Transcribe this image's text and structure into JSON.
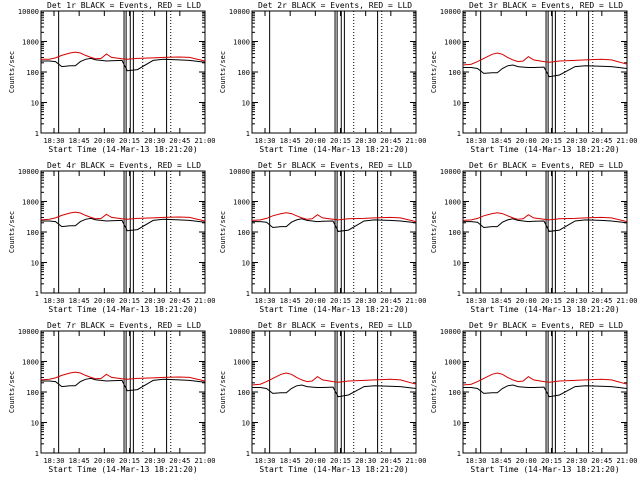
{
  "chart_data": [
    {
      "type": "line",
      "title": "Det 1r BLACK = Events, RED = LLD",
      "xlabel": "Start Time (14-Mar-13 18:21:20)",
      "ylabel": "Counts/sec",
      "yscale": "log",
      "ylim": [
        1,
        10000
      ],
      "xlim": [
        "18:22",
        "21:00"
      ],
      "x_ticks": [
        "18:30",
        "18:45",
        "20:00",
        "20:15",
        "20:30",
        "20:45",
        "21:00"
      ],
      "y_ticks": [
        "1",
        "10",
        "100",
        "1000",
        "10000"
      ],
      "legend": "none",
      "grid": false,
      "x": [
        "18:22",
        "18:30",
        "18:36",
        "18:42",
        "18:50",
        "18:55",
        "19:00",
        "19:05",
        "19:10",
        "19:15",
        "19:20",
        "19:25",
        "19:30",
        "19:40",
        "19:45",
        "19:55",
        "20:10",
        "20:20",
        "20:35",
        "20:45",
        "21:00"
      ],
      "series": [
        {
          "color": "#000000",
          "values": [
            230,
            230,
            220,
            150,
            160,
            160,
            220,
            260,
            280,
            250,
            240,
            230,
            235,
            240,
            110,
            120,
            240,
            260,
            250,
            240,
            210
          ]
        },
        {
          "color": "#d40000",
          "values": [
            260,
            260,
            290,
            350,
            420,
            450,
            420,
            350,
            300,
            270,
            280,
            390,
            300,
            270,
            260,
            280,
            290,
            300,
            310,
            300,
            230
          ]
        }
      ],
      "vertical_lines": {
        "solid": [
          "18:22",
          "18:39",
          "19:42",
          "19:44",
          "19:48",
          "19:51",
          "20:23"
        ],
        "dotted": [
          "20:00",
          "20:27"
        ]
      }
    },
    {
      "type": "line",
      "title": "Det 2r BLACK = Events, RED = LLD",
      "xlabel": "Start Time (14-Mar-13 18:21:20)",
      "ylabel": "Counts/sec",
      "yscale": "log",
      "ylim": [
        1,
        10000
      ],
      "xlim": [
        "18:22",
        "21:00"
      ],
      "x_ticks": [
        "18:30",
        "18:45",
        "20:00",
        "20:15",
        "20:30",
        "20:45",
        "21:00"
      ],
      "y_ticks": [
        "1",
        "10",
        "100",
        "1000",
        "10000"
      ],
      "legend": "none",
      "grid": false,
      "x": [],
      "series": [],
      "vertical_lines": {
        "solid": [
          "18:22",
          "18:39",
          "19:42",
          "19:44",
          "19:48",
          "19:51",
          "20:23"
        ],
        "dotted": [
          "20:00",
          "20:27"
        ]
      }
    },
    {
      "type": "line",
      "title": "Det 3r BLACK = Events, RED = LLD",
      "xlabel": "Start Time (14-Mar-13 18:21:20)",
      "ylabel": "Counts/sec",
      "yscale": "log",
      "ylim": [
        1,
        10000
      ],
      "xlim": [
        "18:22",
        "21:00"
      ],
      "x_ticks": [
        "18:30",
        "18:45",
        "20:00",
        "20:15",
        "20:30",
        "20:45",
        "21:00"
      ],
      "y_ticks": [
        "1",
        "10",
        "100",
        "1000",
        "10000"
      ],
      "legend": "none",
      "grid": false,
      "x": [
        "18:22",
        "18:30",
        "18:36",
        "18:42",
        "18:50",
        "18:55",
        "19:00",
        "19:05",
        "19:10",
        "19:15",
        "19:20",
        "19:25",
        "19:30",
        "19:40",
        "19:45",
        "19:55",
        "20:10",
        "20:20",
        "20:35",
        "20:45",
        "21:00"
      ],
      "series": [
        {
          "color": "#000000",
          "values": [
            140,
            140,
            130,
            90,
            95,
            95,
            130,
            160,
            170,
            150,
            145,
            140,
            140,
            145,
            70,
            80,
            150,
            160,
            155,
            150,
            130
          ]
        },
        {
          "color": "#d40000",
          "values": [
            170,
            180,
            220,
            280,
            380,
            420,
            380,
            300,
            250,
            220,
            230,
            320,
            250,
            220,
            210,
            230,
            240,
            250,
            260,
            250,
            180
          ]
        }
      ],
      "vertical_lines": {
        "solid": [
          "18:22",
          "18:39",
          "19:42",
          "19:44",
          "19:48",
          "19:51",
          "20:23"
        ],
        "dotted": [
          "20:00",
          "20:27"
        ]
      }
    },
    {
      "type": "line",
      "title": "Det 4r BLACK = Events, RED = LLD",
      "xlabel": "Start Time (14-Mar-13 18:21:20)",
      "ylabel": "Counts/sec",
      "yscale": "log",
      "ylim": [
        1,
        10000
      ],
      "xlim": [
        "18:22",
        "21:00"
      ],
      "x_ticks": [
        "18:30",
        "18:45",
        "20:00",
        "20:15",
        "20:30",
        "20:45",
        "21:00"
      ],
      "y_ticks": [
        "1",
        "10",
        "100",
        "1000",
        "10000"
      ],
      "legend": "none",
      "grid": false,
      "x": [
        "18:22",
        "18:30",
        "18:36",
        "18:42",
        "18:50",
        "18:55",
        "19:00",
        "19:05",
        "19:10",
        "19:15",
        "19:20",
        "19:25",
        "19:30",
        "19:40",
        "19:45",
        "19:55",
        "20:10",
        "20:20",
        "20:35",
        "20:45",
        "21:00"
      ],
      "series": [
        {
          "color": "#000000",
          "values": [
            230,
            230,
            220,
            150,
            160,
            160,
            220,
            260,
            280,
            250,
            240,
            230,
            235,
            240,
            110,
            120,
            240,
            260,
            250,
            240,
            210
          ]
        },
        {
          "color": "#d40000",
          "values": [
            250,
            260,
            290,
            350,
            420,
            450,
            420,
            350,
            300,
            270,
            280,
            380,
            300,
            270,
            260,
            280,
            290,
            300,
            310,
            300,
            230
          ]
        }
      ],
      "vertical_lines": {
        "solid": [
          "18:22",
          "18:39",
          "19:42",
          "19:44",
          "19:48",
          "19:51",
          "20:23"
        ],
        "dotted": [
          "20:00",
          "20:27"
        ]
      }
    },
    {
      "type": "line",
      "title": "Det 5r BLACK = Events, RED = LLD",
      "xlabel": "Start Time (14-Mar-13 18:21:20)",
      "ylabel": "Counts/sec",
      "yscale": "log",
      "ylim": [
        1,
        10000
      ],
      "xlim": [
        "18:22",
        "21:00"
      ],
      "x_ticks": [
        "18:30",
        "18:45",
        "20:00",
        "20:15",
        "20:30",
        "20:45",
        "21:00"
      ],
      "y_ticks": [
        "1",
        "10",
        "100",
        "1000",
        "10000"
      ],
      "legend": "none",
      "grid": false,
      "x": [
        "18:22",
        "18:30",
        "18:36",
        "18:42",
        "18:50",
        "18:55",
        "19:00",
        "19:05",
        "19:10",
        "19:15",
        "19:20",
        "19:25",
        "19:30",
        "19:40",
        "19:45",
        "19:55",
        "20:10",
        "20:20",
        "20:35",
        "20:45",
        "21:00"
      ],
      "series": [
        {
          "color": "#000000",
          "values": [
            220,
            220,
            210,
            140,
            150,
            150,
            210,
            250,
            270,
            240,
            230,
            220,
            225,
            230,
            105,
            115,
            230,
            250,
            240,
            230,
            200
          ]
        },
        {
          "color": "#d40000",
          "values": [
            240,
            250,
            280,
            340,
            400,
            430,
            400,
            340,
            290,
            260,
            270,
            370,
            290,
            260,
            250,
            270,
            280,
            290,
            300,
            290,
            220
          ]
        }
      ],
      "vertical_lines": {
        "solid": [
          "18:22",
          "18:39",
          "19:42",
          "19:44",
          "19:48",
          "19:51",
          "20:23"
        ],
        "dotted": [
          "20:00",
          "20:27"
        ]
      }
    },
    {
      "type": "line",
      "title": "Det 6r BLACK = Events, RED = LLD",
      "xlabel": "Start Time (14-Mar-13 18:21:20)",
      "ylabel": "Counts/sec",
      "yscale": "log",
      "ylim": [
        1,
        10000
      ],
      "xlim": [
        "18:22",
        "21:00"
      ],
      "x_ticks": [
        "18:30",
        "18:45",
        "20:00",
        "20:15",
        "20:30",
        "20:45",
        "21:00"
      ],
      "y_ticks": [
        "1",
        "10",
        "100",
        "1000",
        "10000"
      ],
      "legend": "none",
      "grid": false,
      "x": [
        "18:22",
        "18:30",
        "18:36",
        "18:42",
        "18:50",
        "18:55",
        "19:00",
        "19:05",
        "19:10",
        "19:15",
        "19:20",
        "19:25",
        "19:30",
        "19:40",
        "19:45",
        "19:55",
        "20:10",
        "20:20",
        "20:35",
        "20:45",
        "21:00"
      ],
      "series": [
        {
          "color": "#000000",
          "values": [
            220,
            220,
            210,
            140,
            150,
            150,
            210,
            250,
            270,
            240,
            230,
            220,
            225,
            230,
            105,
            115,
            230,
            250,
            240,
            230,
            200
          ]
        },
        {
          "color": "#d40000",
          "values": [
            240,
            250,
            280,
            340,
            400,
            430,
            400,
            340,
            290,
            260,
            270,
            370,
            290,
            260,
            250,
            270,
            280,
            290,
            300,
            290,
            220
          ]
        }
      ],
      "vertical_lines": {
        "solid": [
          "18:22",
          "18:39",
          "19:42",
          "19:44",
          "19:48",
          "19:51",
          "20:23"
        ],
        "dotted": [
          "20:00",
          "20:27"
        ]
      }
    },
    {
      "type": "line",
      "title": "Det 7r BLACK = Events, RED = LLD",
      "xlabel": "Start Time (14-Mar-13 18:21:20)",
      "ylabel": "Counts/sec",
      "yscale": "log",
      "ylim": [
        1,
        10000
      ],
      "xlim": [
        "18:22",
        "21:00"
      ],
      "x_ticks": [
        "18:30",
        "18:45",
        "20:00",
        "20:15",
        "20:30",
        "20:45",
        "21:00"
      ],
      "y_ticks": [
        "1",
        "10",
        "100",
        "1000",
        "10000"
      ],
      "legend": "none",
      "grid": false,
      "x": [
        "18:22",
        "18:30",
        "18:36",
        "18:42",
        "18:50",
        "18:55",
        "19:00",
        "19:05",
        "19:10",
        "19:15",
        "19:20",
        "19:25",
        "19:30",
        "19:40",
        "19:45",
        "19:55",
        "20:10",
        "20:20",
        "20:35",
        "20:45",
        "21:00"
      ],
      "series": [
        {
          "color": "#000000",
          "values": [
            230,
            230,
            220,
            150,
            160,
            160,
            220,
            260,
            280,
            250,
            240,
            230,
            235,
            240,
            110,
            120,
            240,
            260,
            250,
            240,
            210
          ]
        },
        {
          "color": "#d40000",
          "values": [
            250,
            260,
            290,
            350,
            420,
            450,
            420,
            350,
            300,
            270,
            280,
            380,
            300,
            270,
            260,
            280,
            290,
            300,
            310,
            300,
            230
          ]
        }
      ],
      "vertical_lines": {
        "solid": [
          "18:22",
          "18:39",
          "19:42",
          "19:44",
          "19:48",
          "19:51",
          "20:23"
        ],
        "dotted": [
          "20:00",
          "20:27"
        ]
      }
    },
    {
      "type": "line",
      "title": "Det 8r BLACK = Events, RED = LLD",
      "xlabel": "Start Time (14-Mar-13 18:21:20)",
      "ylabel": "Counts/sec",
      "yscale": "log",
      "ylim": [
        1,
        10000
      ],
      "xlim": [
        "18:22",
        "21:00"
      ],
      "x_ticks": [
        "18:30",
        "18:45",
        "20:00",
        "20:15",
        "20:30",
        "20:45",
        "21:00"
      ],
      "y_ticks": [
        "1",
        "10",
        "100",
        "1000",
        "10000"
      ],
      "legend": "none",
      "grid": false,
      "x": [
        "18:22",
        "18:30",
        "18:36",
        "18:42",
        "18:50",
        "18:55",
        "19:00",
        "19:05",
        "19:10",
        "19:15",
        "19:20",
        "19:25",
        "19:30",
        "19:40",
        "19:45",
        "19:55",
        "20:10",
        "20:20",
        "20:35",
        "20:45",
        "21:00"
      ],
      "series": [
        {
          "color": "#000000",
          "values": [
            140,
            140,
            130,
            90,
            95,
            95,
            130,
            160,
            170,
            150,
            145,
            140,
            140,
            145,
            70,
            80,
            150,
            160,
            155,
            150,
            130
          ]
        },
        {
          "color": "#d40000",
          "values": [
            170,
            180,
            220,
            280,
            380,
            420,
            380,
            300,
            250,
            220,
            230,
            320,
            250,
            220,
            210,
            230,
            240,
            250,
            260,
            250,
            180
          ]
        }
      ],
      "vertical_lines": {
        "solid": [
          "18:22",
          "18:39",
          "19:42",
          "19:44",
          "19:48",
          "19:51",
          "20:23"
        ],
        "dotted": [
          "20:00",
          "20:27"
        ]
      }
    },
    {
      "type": "line",
      "title": "Det 9r BLACK = Events, RED = LLD",
      "xlabel": "Start Time (14-Mar-13 18:21:20)",
      "ylabel": "Counts/sec",
      "yscale": "log",
      "ylim": [
        1,
        10000
      ],
      "xlim": [
        "18:22",
        "21:00"
      ],
      "x_ticks": [
        "18:30",
        "18:45",
        "20:00",
        "20:15",
        "20:30",
        "20:45",
        "21:00"
      ],
      "y_ticks": [
        "1",
        "10",
        "100",
        "1000",
        "10000"
      ],
      "legend": "none",
      "grid": false,
      "x": [
        "18:22",
        "18:30",
        "18:36",
        "18:42",
        "18:50",
        "18:55",
        "19:00",
        "19:05",
        "19:10",
        "19:15",
        "19:20",
        "19:25",
        "19:30",
        "19:40",
        "19:45",
        "19:55",
        "20:10",
        "20:20",
        "20:35",
        "20:45",
        "21:00"
      ],
      "series": [
        {
          "color": "#000000",
          "values": [
            140,
            140,
            130,
            90,
            95,
            95,
            130,
            160,
            170,
            150,
            145,
            140,
            140,
            145,
            70,
            80,
            150,
            160,
            155,
            150,
            130
          ]
        },
        {
          "color": "#d40000",
          "values": [
            170,
            180,
            220,
            280,
            380,
            420,
            380,
            300,
            250,
            220,
            230,
            320,
            250,
            220,
            210,
            230,
            240,
            250,
            260,
            250,
            180
          ]
        }
      ],
      "vertical_lines": {
        "solid": [
          "18:22",
          "18:39",
          "19:42",
          "19:44",
          "19:48",
          "19:51",
          "20:23"
        ],
        "dotted": [
          "20:00",
          "20:27"
        ]
      }
    }
  ]
}
